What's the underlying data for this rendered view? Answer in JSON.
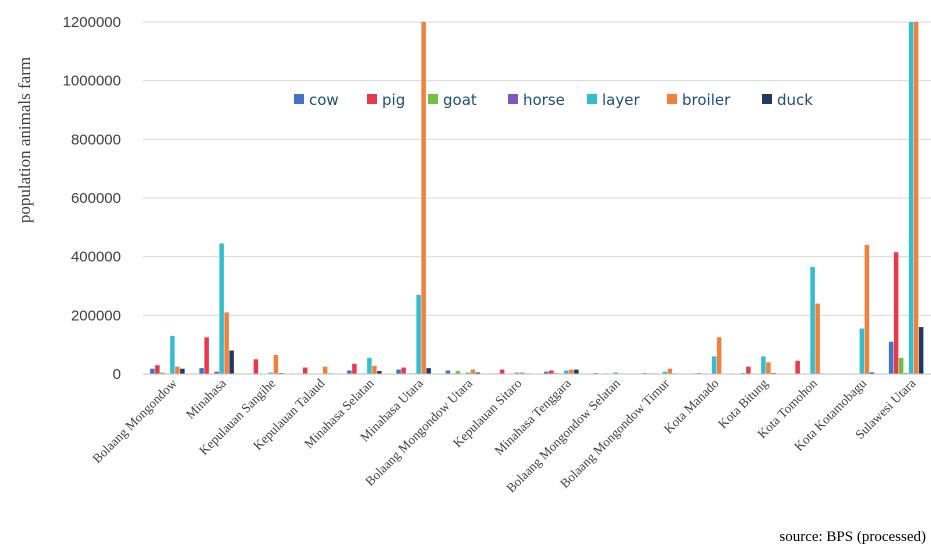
{
  "chart_data": {
    "type": "bar",
    "ylabel": "population animals farm",
    "ylim": [
      0,
      1200000
    ],
    "yticks": [
      "0",
      "200000",
      "400000",
      "600000",
      "800000",
      "1000000",
      "1200000"
    ],
    "categories": [
      "Bolaang Mongondow",
      "Minahasa",
      "Kepulauan Sangihe",
      "Kepulauan Talaud",
      "Minahasa Selatan",
      "Minahasa Utara",
      "Bolaang Mongondow Utara",
      "Kepulauan Sitaro",
      "Minahasa Tenggara",
      "Bolaang Mongondow Selatan",
      "Bolaang Mongondow Timur",
      "Kota Manado",
      "Kota Bitung",
      "Kota Tomohon",
      "Kota Kotamobagu",
      "Sulawesi Utara"
    ],
    "series": [
      {
        "name": "cow",
        "color": "#4472c4",
        "values": [
          18000,
          20000,
          2000,
          1000,
          12000,
          15000,
          12000,
          2000,
          8000,
          3000,
          3000,
          2000,
          3000,
          1000,
          1000,
          110000
        ]
      },
      {
        "name": "pig",
        "color": "#e8394b",
        "values": [
          30000,
          125000,
          50000,
          22000,
          35000,
          22000,
          2000,
          15000,
          12000,
          1000,
          2000,
          3000,
          25000,
          45000,
          1000,
          415000
        ]
      },
      {
        "name": "goat",
        "color": "#70c043",
        "values": [
          5000,
          2000,
          2000,
          1000,
          2000,
          2000,
          10000,
          1000,
          3000,
          2000,
          2000,
          1000,
          2000,
          1000,
          1000,
          55000
        ]
      },
      {
        "name": "horse",
        "color": "#7e57c2",
        "values": [
          2000,
          8000,
          1000,
          500,
          2000,
          2000,
          500,
          1000,
          2000,
          500,
          500,
          500,
          500,
          500,
          500,
          3000
        ]
      },
      {
        "name": "layer",
        "color": "#34bdd0",
        "values": [
          130000,
          445000,
          5000,
          1000,
          55000,
          270000,
          5000,
          5000,
          12000,
          5000,
          8000,
          60000,
          60000,
          365000,
          155000,
          1200000
        ]
      },
      {
        "name": "broiler",
        "color": "#f0803c",
        "values": [
          25000,
          210000,
          65000,
          25000,
          28000,
          1200000,
          15000,
          5000,
          15000,
          2000,
          18000,
          125000,
          40000,
          240000,
          440000,
          1200000
        ]
      },
      {
        "name": "duck",
        "color": "#1f3864",
        "values": [
          18000,
          80000,
          3000,
          2000,
          10000,
          20000,
          5000,
          2000,
          15000,
          1000,
          2000,
          1000,
          3000,
          2000,
          5000,
          160000
        ]
      }
    ],
    "legend_position": "top-center",
    "grid": "horizontal",
    "annotation": "source: BPS (processed)"
  }
}
